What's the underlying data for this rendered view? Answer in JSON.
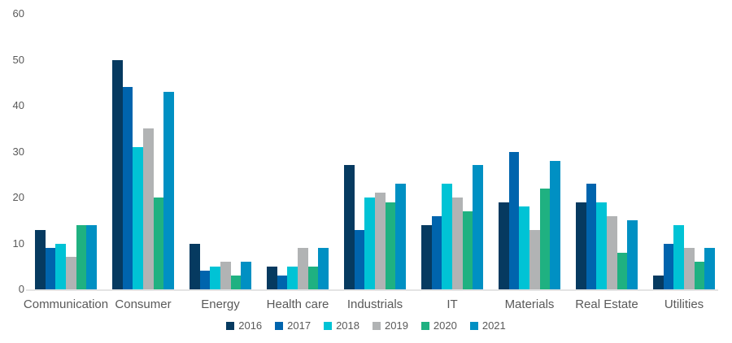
{
  "chart_data": {
    "type": "bar",
    "title": "",
    "xlabel": "",
    "ylabel": "",
    "categories": [
      "Communication",
      "Consumer",
      "Energy",
      "Health care",
      "Industrials",
      "IT",
      "Materials",
      "Real Estate",
      "Utilities"
    ],
    "series": [
      {
        "name": "2016",
        "color": "#063A60",
        "values": [
          13,
          50,
          10,
          5,
          27,
          14,
          19,
          19,
          3
        ]
      },
      {
        "name": "2017",
        "color": "#0064AD",
        "values": [
          9,
          44,
          4,
          3,
          13,
          16,
          30,
          23,
          10
        ]
      },
      {
        "name": "2018",
        "color": "#00C3D5",
        "values": [
          10,
          31,
          5,
          5,
          20,
          23,
          18,
          19,
          14
        ]
      },
      {
        "name": "2019",
        "color": "#B1B3B4",
        "values": [
          7,
          35,
          6,
          9,
          21,
          20,
          13,
          16,
          9
        ]
      },
      {
        "name": "2020",
        "color": "#1FB181",
        "values": [
          14,
          20,
          3,
          5,
          19,
          17,
          22,
          8,
          6
        ]
      },
      {
        "name": "2021",
        "color": "#0090C3",
        "values": [
          14,
          43,
          6,
          9,
          23,
          27,
          28,
          15,
          9
        ]
      }
    ],
    "ylim": [
      0,
      60
    ],
    "yticks": [
      0,
      10,
      20,
      30,
      40,
      50,
      60
    ],
    "grid": false,
    "legend_position": "bottom"
  },
  "colors": {
    "text": "#595959",
    "axis_line": "#E4E4E4",
    "background": "#FFFFFF"
  }
}
